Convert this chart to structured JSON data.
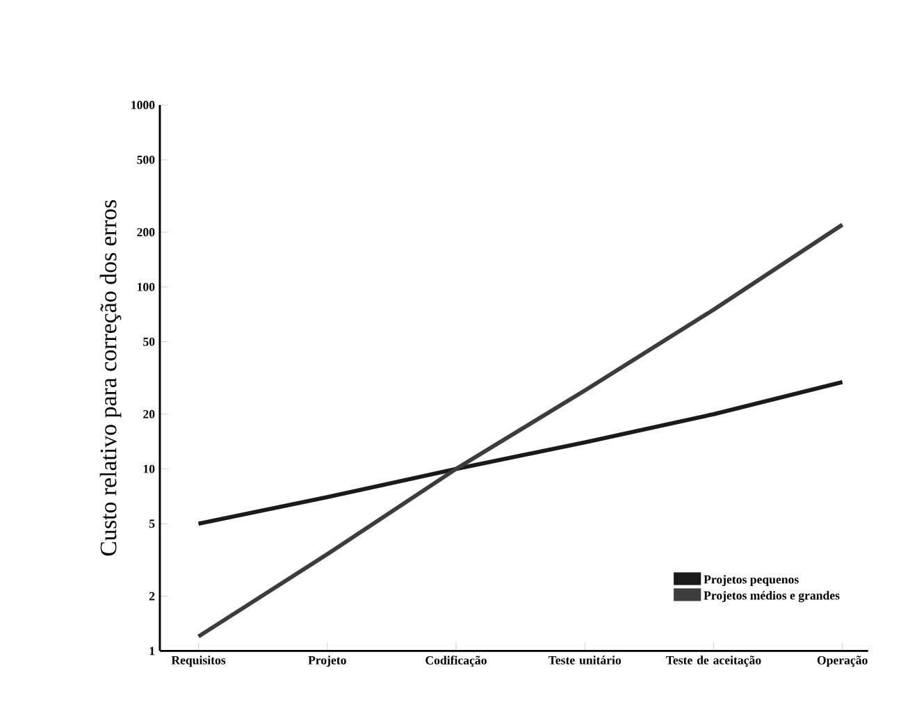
{
  "chart_data": {
    "type": "line",
    "ylabel": "Custo relativo para correção dos erros",
    "categories": [
      "Requisitos",
      "Projeto",
      "Codificação",
      "Teste unitário",
      "Teste de aceitação",
      "Operação"
    ],
    "series": [
      {
        "name": "Projetos pequenos",
        "color": "#1a1a1a",
        "values": [
          5,
          7,
          10,
          14,
          20,
          30
        ]
      },
      {
        "name": "Projetos médios e grandes",
        "color": "#3c3c3c",
        "values": [
          1.2,
          3.4,
          10,
          27,
          75,
          220
        ]
      }
    ],
    "log": "y",
    "ylim": [
      1,
      1000
    ],
    "yticks": [
      1,
      2,
      5,
      10,
      20,
      50,
      100,
      200,
      500,
      1000
    ],
    "legend": "bottom right",
    "grid": false,
    "marker": "none",
    "line_style": "solid"
  }
}
